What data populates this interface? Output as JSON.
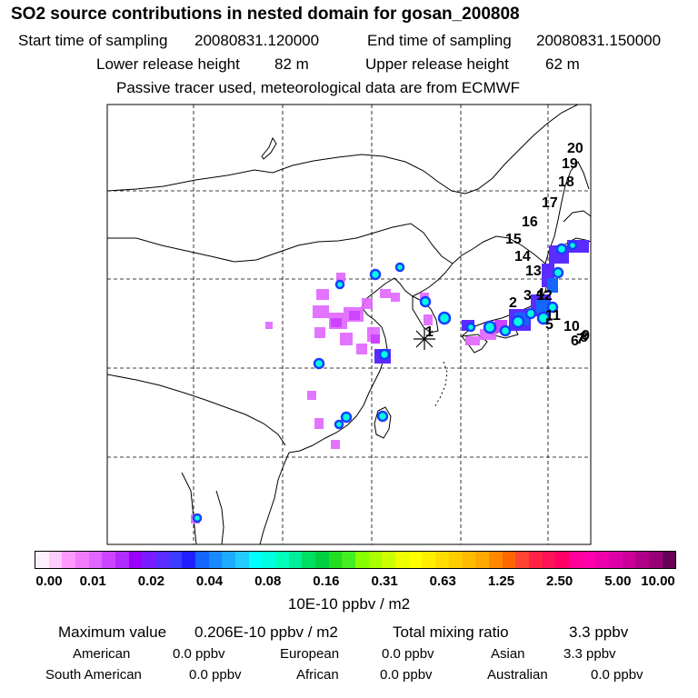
{
  "title": "SO2 source contributions in nested domain for gosan_200808",
  "header": {
    "start_label": "Start time of sampling",
    "start_value": "20080831.120000",
    "end_label": "End time of sampling",
    "end_value": "20080831.150000",
    "lower_label": "Lower release height",
    "lower_value": "82 m",
    "upper_label": "Upper release height",
    "upper_value": "62 m",
    "note": "Passive tracer used, meteorological data are from ECMWF"
  },
  "trajectory_labels": [
    "1",
    "2",
    "3",
    "4",
    "5",
    "6",
    "7",
    "8",
    "9",
    "10",
    "11",
    "12",
    "13",
    "14",
    "15",
    "16",
    "17",
    "18",
    "19",
    "20"
  ],
  "receptor": "gosan",
  "colorbar": {
    "ticks": [
      "0.00",
      "0.01",
      "0.02",
      "0.04",
      "0.08",
      "0.16",
      "0.31",
      "0.63",
      "1.25",
      "2.50",
      "5.00",
      "10.00"
    ],
    "colors": [
      "#ffeeff",
      "#ffccff",
      "#ff99ff",
      "#f07cfb",
      "#e066ff",
      "#cc44ff",
      "#b22cff",
      "#9b00ff",
      "#7a1aff",
      "#5a2cff",
      "#3a3cff",
      "#2020ff",
      "#1466ff",
      "#1a88ff",
      "#1eaaff",
      "#22ccff",
      "#00ffff",
      "#00ffe0",
      "#00ffbb",
      "#00ee99",
      "#00e060",
      "#00d040",
      "#22dd22",
      "#44ee22",
      "#88ff00",
      "#aaff00",
      "#ccff00",
      "#eeff00",
      "#ffff00",
      "#ffee00",
      "#ffdd00",
      "#ffcc00",
      "#ffbb00",
      "#ffaa00",
      "#ff8800",
      "#ff6600",
      "#ff4433",
      "#ff2244",
      "#ff1155",
      "#ff0066",
      "#ff0099",
      "#ff00aa",
      "#ee00aa",
      "#dd00aa",
      "#cc0099",
      "#b00088",
      "#990077",
      "#660055"
    ],
    "units": "10E-10 ppbv / m2"
  },
  "stats": {
    "max_label": "Maximum value",
    "max_value": "0.206E-10 ppbv / m2",
    "total_label": "Total mixing ratio",
    "total_value": "3.3 ppbv",
    "regions": [
      {
        "name": "American",
        "value": "0.0 ppbv"
      },
      {
        "name": "European",
        "value": "0.0 ppbv"
      },
      {
        "name": "Asian",
        "value": "3.3 ppbv"
      },
      {
        "name": "South American",
        "value": "0.0 ppbv"
      },
      {
        "name": "African",
        "value": "0.0 ppbv"
      },
      {
        "name": "Australian",
        "value": "0.0 ppbv"
      }
    ]
  }
}
